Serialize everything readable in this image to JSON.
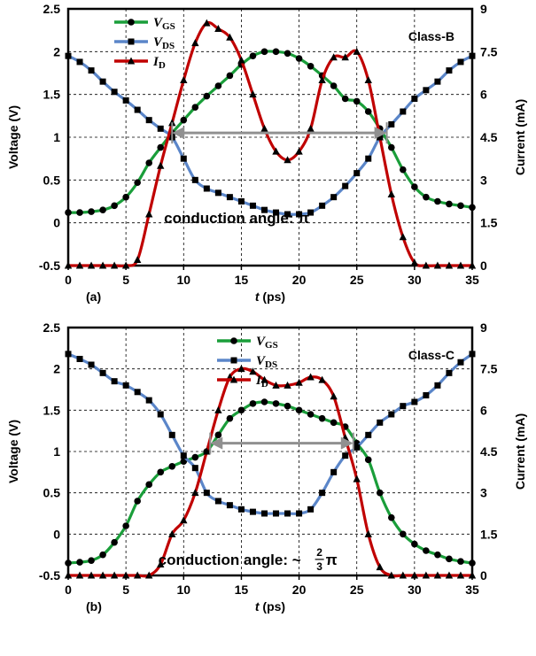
{
  "colors": {
    "vgs": "#1a9e3a",
    "vds": "#5b86c9",
    "id": "#c00000",
    "arrow": "#909090",
    "grid": "#000000"
  },
  "chart_data": [
    {
      "type": "line",
      "panel_label": "(a)",
      "class_label": "Class-B",
      "annotation": "conduction angle: π",
      "xlabel_italic": "t",
      "xlabel_unit": " (ps)",
      "ylabel_left": "Voltage (V)",
      "ylabel_right": "Current (mA)",
      "xlim": [
        0,
        35
      ],
      "ylim_left": [
        -0.5,
        2.5
      ],
      "ylim_right": [
        0,
        9
      ],
      "x_ticks": [
        "0",
        "5",
        "10",
        "15",
        "20",
        "25",
        "30",
        "35"
      ],
      "y_left_ticks": [
        "-0.5",
        "0",
        "0.5",
        "1",
        "1.5",
        "2",
        "2.5"
      ],
      "y_right_ticks": [
        "0",
        "1.5",
        "3",
        "4.5",
        "6",
        "7.5",
        "9"
      ],
      "legend": [
        "V_GS",
        "V_DS",
        "I_D"
      ],
      "conduction_arrow": {
        "x_start": 9,
        "x_end": 27.6,
        "y": 1.05
      },
      "series": [
        {
          "name": "V_GS",
          "axis": "left",
          "marker": "circle",
          "x": [
            0,
            1,
            2,
            3,
            4,
            5,
            6,
            7,
            8,
            9,
            10,
            11,
            12,
            13,
            14,
            15,
            16,
            17,
            18,
            19,
            20,
            21,
            22,
            23,
            24,
            25,
            26,
            27,
            28,
            29,
            30,
            31,
            32,
            33,
            34,
            35
          ],
          "y": [
            0.12,
            0.12,
            0.13,
            0.15,
            0.2,
            0.3,
            0.47,
            0.7,
            0.88,
            1.05,
            1.2,
            1.35,
            1.48,
            1.6,
            1.72,
            1.85,
            1.95,
            2.0,
            2.0,
            1.98,
            1.92,
            1.83,
            1.72,
            1.6,
            1.45,
            1.42,
            1.3,
            1.1,
            0.88,
            0.62,
            0.42,
            0.3,
            0.25,
            0.22,
            0.2,
            0.18
          ]
        },
        {
          "name": "V_DS",
          "axis": "left",
          "marker": "square",
          "x": [
            0,
            1,
            2,
            3,
            4,
            5,
            6,
            7,
            8,
            9,
            10,
            11,
            12,
            13,
            14,
            15,
            16,
            17,
            18,
            19,
            20,
            21,
            22,
            23,
            24,
            25,
            26,
            27,
            28,
            29,
            30,
            31,
            32,
            33,
            34,
            35
          ],
          "y": [
            1.95,
            1.88,
            1.78,
            1.65,
            1.53,
            1.43,
            1.32,
            1.2,
            1.1,
            1.0,
            0.75,
            0.5,
            0.4,
            0.35,
            0.3,
            0.25,
            0.2,
            0.15,
            0.12,
            0.1,
            0.1,
            0.12,
            0.2,
            0.3,
            0.43,
            0.58,
            0.75,
            1.0,
            1.15,
            1.3,
            1.45,
            1.55,
            1.65,
            1.78,
            1.88,
            1.95
          ]
        },
        {
          "name": "I_D",
          "axis": "right",
          "marker": "triangle",
          "x": [
            0,
            1,
            2,
            3,
            4,
            5,
            6,
            7,
            8,
            9,
            10,
            11,
            12,
            13,
            14,
            15,
            16,
            17,
            18,
            19,
            20,
            21,
            22,
            23,
            24,
            25,
            26,
            27,
            28,
            29,
            30,
            31,
            32,
            33,
            34,
            35
          ],
          "y": [
            0,
            0,
            0,
            0,
            0,
            0,
            0.2,
            1.8,
            3.5,
            5.0,
            6.5,
            7.8,
            8.5,
            8.3,
            8.0,
            7.2,
            6.0,
            4.8,
            4.0,
            3.7,
            4.0,
            4.8,
            6.5,
            7.3,
            7.3,
            7.5,
            6.5,
            4.5,
            2.5,
            1.0,
            0.1,
            0,
            0,
            0,
            0,
            0
          ]
        }
      ]
    },
    {
      "type": "line",
      "panel_label": "(b)",
      "class_label": "Class-C",
      "annotation_prefix": "conduction angle: ~",
      "annotation_fraction_num": "2",
      "annotation_fraction_den": "3",
      "annotation_suffix": "π",
      "xlabel_italic": "t",
      "xlabel_unit": " (ps)",
      "ylabel_left": "Voltage (V)",
      "ylabel_right": "Current (mA)",
      "xlim": [
        0,
        35
      ],
      "ylim_left": [
        -0.5,
        2.5
      ],
      "ylim_right": [
        0,
        9
      ],
      "x_ticks": [
        "0",
        "5",
        "10",
        "15",
        "20",
        "25",
        "30",
        "35"
      ],
      "y_left_ticks": [
        "-0.5",
        "0",
        "0.5",
        "1",
        "1.5",
        "2",
        "2.5"
      ],
      "y_right_ticks": [
        "0",
        "1.5",
        "3",
        "4.5",
        "6",
        "7.5",
        "9"
      ],
      "legend": [
        "V_GS",
        "V_DS",
        "I_D"
      ],
      "conduction_arrow": {
        "x_start": 12.3,
        "x_end": 24.7,
        "y": 1.1
      },
      "series": [
        {
          "name": "V_GS",
          "axis": "left",
          "marker": "circle",
          "x": [
            0,
            1,
            2,
            3,
            4,
            5,
            6,
            7,
            8,
            9,
            10,
            11,
            12,
            13,
            14,
            15,
            16,
            17,
            18,
            19,
            20,
            21,
            22,
            23,
            24,
            25,
            26,
            27,
            28,
            29,
            30,
            31,
            32,
            33,
            34,
            35
          ],
          "y": [
            -0.35,
            -0.34,
            -0.32,
            -0.25,
            -0.1,
            0.1,
            0.4,
            0.6,
            0.75,
            0.82,
            0.88,
            0.93,
            1.0,
            1.2,
            1.4,
            1.5,
            1.58,
            1.6,
            1.58,
            1.55,
            1.5,
            1.45,
            1.4,
            1.35,
            1.3,
            1.1,
            0.9,
            0.5,
            0.2,
            0.0,
            -0.12,
            -0.2,
            -0.25,
            -0.3,
            -0.33,
            -0.35
          ]
        },
        {
          "name": "V_DS",
          "axis": "left",
          "marker": "square",
          "x": [
            0,
            1,
            2,
            3,
            4,
            5,
            6,
            7,
            8,
            9,
            10,
            11,
            12,
            13,
            14,
            15,
            16,
            17,
            18,
            19,
            20,
            21,
            22,
            23,
            24,
            25,
            26,
            27,
            28,
            29,
            30,
            31,
            32,
            33,
            34,
            35
          ],
          "y": [
            2.18,
            2.12,
            2.05,
            1.95,
            1.85,
            1.8,
            1.72,
            1.62,
            1.45,
            1.2,
            0.95,
            0.8,
            0.5,
            0.4,
            0.35,
            0.3,
            0.27,
            0.25,
            0.25,
            0.25,
            0.25,
            0.3,
            0.5,
            0.75,
            0.95,
            1.05,
            1.2,
            1.35,
            1.45,
            1.55,
            1.6,
            1.68,
            1.8,
            1.95,
            2.08,
            2.18
          ]
        },
        {
          "name": "I_D",
          "axis": "right",
          "marker": "triangle",
          "x": [
            0,
            1,
            2,
            3,
            4,
            5,
            6,
            7,
            8,
            9,
            10,
            11,
            12,
            13,
            14,
            15,
            16,
            17,
            18,
            19,
            20,
            21,
            22,
            23,
            24,
            25,
            26,
            27,
            28,
            29,
            30,
            31,
            32,
            33,
            34,
            35
          ],
          "y": [
            0,
            0,
            0,
            0,
            0,
            0,
            0,
            0,
            0.4,
            1.5,
            2.0,
            3.0,
            4.5,
            6.0,
            7.2,
            7.5,
            7.4,
            7.1,
            6.9,
            6.9,
            7.0,
            7.2,
            7.1,
            6.5,
            5.0,
            3.5,
            1.5,
            0.3,
            0,
            0,
            0,
            0,
            0,
            0,
            0,
            0
          ]
        }
      ]
    }
  ]
}
